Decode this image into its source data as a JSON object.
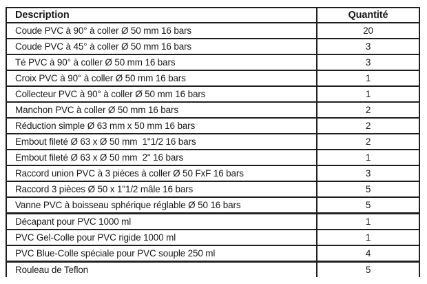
{
  "table": {
    "headers": [
      "Description",
      "Quantité"
    ],
    "border_color": "#1f1f1f",
    "text_color": "#1a1a1a",
    "rows": [
      {
        "description": "Coude PVC à 90° à coller Ø 50 mm 16 bars",
        "quantity": "20"
      },
      {
        "description": "Coude PVC à 45° à coller Ø 50 mm 16 bars",
        "quantity": "3"
      },
      {
        "description": "Té PVC à 90° à coller Ø 50 mm 16 bars",
        "quantity": "3"
      },
      {
        "description": "Croix PVC à 90° à coller Ø 50 mm 16 bars",
        "quantity": "1"
      },
      {
        "description": "Collecteur PVC à 90° à coller Ø 50 mm 16 bars",
        "quantity": "1"
      },
      {
        "description": "Manchon PVC à coller Ø 50 mm 16 bars",
        "quantity": "2"
      },
      {
        "description": "Réduction simple Ø 63 mm x 50 mm 16 bars",
        "quantity": "2"
      },
      {
        "description": "Embout fileté Ø 63 x Ø 50 mm  1\"1/2 16 bars",
        "quantity": "2"
      },
      {
        "description": "Embout fileté Ø 63 x Ø 50 mm  2\" 16 bars",
        "quantity": "1"
      },
      {
        "description": "Raccord union PVC à 3 pièces à coller Ø 50 FxF 16 bars",
        "quantity": "3"
      },
      {
        "description": "Raccord 3 pièces Ø 50 x 1\"1/2 mâle 16 bars",
        "quantity": "5"
      },
      {
        "description": "Vanne PVC à boisseau sphérique réglable Ø 50 16 bars",
        "quantity": "5"
      },
      {
        "description": "Décapant pour PVC 1000 ml",
        "quantity": "1",
        "section_start": true
      },
      {
        "description": "PVC Gel-Colle pour PVC rigide 1000 ml",
        "quantity": "1"
      },
      {
        "description": "PVC Blue-Colle spéciale pour PVC souple 250 ml",
        "quantity": "4"
      },
      {
        "description": "Rouleau de Teflon",
        "quantity": "5",
        "section_start": true
      }
    ]
  }
}
